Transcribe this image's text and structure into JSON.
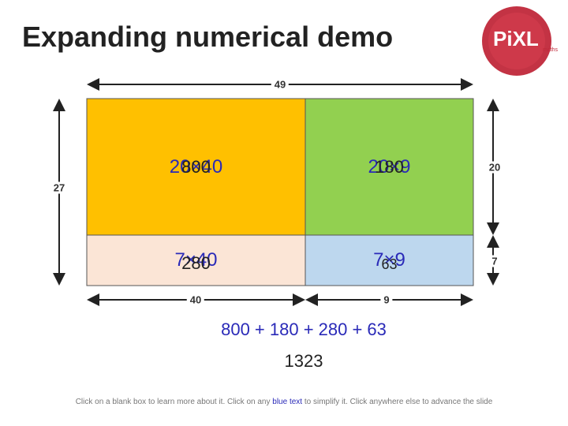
{
  "header": {
    "title": "Expanding numerical demo",
    "logo": {
      "name": "PiXL",
      "subtitle": "maths"
    }
  },
  "dimensions": {
    "total_width": "49",
    "total_height": "27",
    "top_height": "20",
    "bottom_height": "7",
    "left_width": "40",
    "right_width": "9"
  },
  "cells": [
    {
      "expression": "20×40",
      "product": "800"
    },
    {
      "expression": "20×9",
      "product": "180"
    },
    {
      "expression": "7×40",
      "product": "280"
    },
    {
      "expression": "7×9",
      "product": "63"
    }
  ],
  "sum": "800 + 180 + 280 + 63",
  "total": "1323",
  "footer": {
    "before": "Click on a blank box to learn more about it. Click on any ",
    "link": "blue text",
    "after": " to simplify it. Click anywhere else to advance the slide"
  }
}
